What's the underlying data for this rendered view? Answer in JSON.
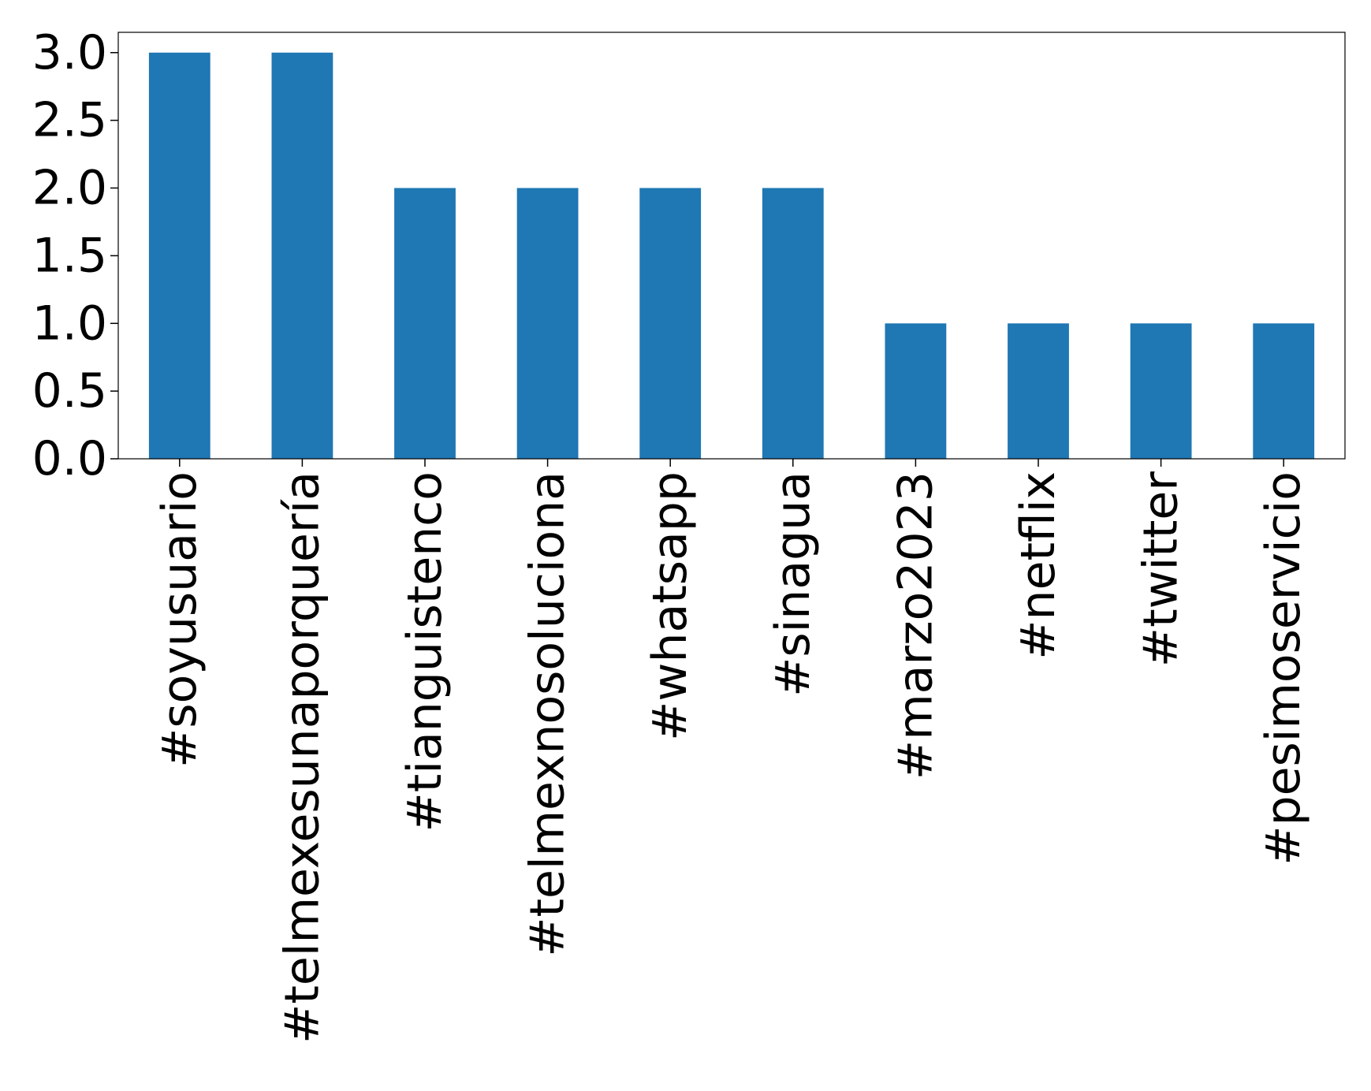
{
  "chart_data": {
    "type": "bar",
    "title": "",
    "xlabel": "",
    "ylabel": "",
    "categories": [
      "#soyusuario",
      "#telmexesunaporquería",
      "#tianguistenco",
      "#telmexnosoluciona",
      "#whatsapp",
      "#sinagua",
      "#marzo2023",
      "#netflix",
      "#twitter",
      "#pesimoservicio"
    ],
    "values": [
      3,
      3,
      2,
      2,
      2,
      2,
      1,
      1,
      1,
      1
    ],
    "ylim": [
      0,
      3.15
    ],
    "yticks": [
      "0.0",
      "0.5",
      "1.0",
      "1.5",
      "2.0",
      "2.5",
      "3.0"
    ],
    "bar_color": "#1f77b4",
    "grid": false,
    "legend": "none",
    "x_tick_rotation": "vertical"
  }
}
